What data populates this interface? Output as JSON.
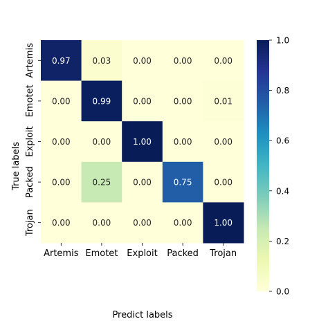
{
  "chart_data": {
    "type": "heatmap",
    "x_categories": [
      "Artemis",
      "Emotet",
      "Exploit",
      "Packed",
      "Trojan"
    ],
    "y_categories": [
      "Artemis",
      "Emotet",
      "Exploit",
      "Packed",
      "Trojan"
    ],
    "values": [
      [
        0.97,
        0.03,
        0.0,
        0.0,
        0.0
      ],
      [
        0.0,
        0.99,
        0.0,
        0.0,
        0.01
      ],
      [
        0.0,
        0.0,
        1.0,
        0.0,
        0.0
      ],
      [
        0.0,
        0.25,
        0.0,
        0.75,
        0.0
      ],
      [
        0.0,
        0.0,
        0.0,
        0.0,
        1.0
      ]
    ],
    "value_format": "0.00",
    "xlabel": "Predict labels",
    "ylabel": "True labels",
    "colormap": "YlGnBu",
    "colorbar": {
      "range": [
        0.0,
        1.0
      ],
      "ticks": [
        "0.0",
        "0.2",
        "0.4",
        "0.6",
        "0.8",
        "1.0"
      ]
    },
    "colors": {
      "low": "#ffffd9",
      "high": "#081d58",
      "annotation_dark": "#262626",
      "annotation_light": "#ffffff"
    }
  }
}
